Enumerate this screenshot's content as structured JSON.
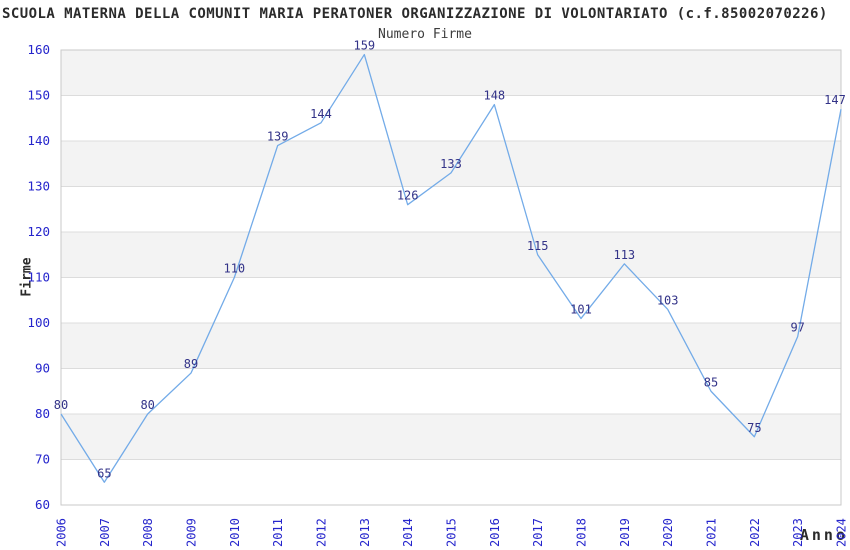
{
  "page": {
    "background": "#ffffff"
  },
  "chart_data": {
    "type": "line",
    "title": "SCUOLA MATERNA DELLA COMUNIT MARIA PERATONER ORGANIZZAZIONE DI VOLONTARIATO (c.f.85002070226)",
    "subtitle": "Numero Firme",
    "xlabel": "Anno",
    "ylabel": "Firme",
    "categories": [
      "2006",
      "2007",
      "2008",
      "2009",
      "2010",
      "2011",
      "2012",
      "2013",
      "2014",
      "2015",
      "2016",
      "2017",
      "2018",
      "2019",
      "2020",
      "2021",
      "2022",
      "2023",
      "2024"
    ],
    "series": [
      {
        "name": "Numero Firme",
        "values": [
          80,
          65,
          80,
          89,
          110,
          139,
          144,
          159,
          126,
          133,
          148,
          115,
          101,
          113,
          103,
          85,
          75,
          97,
          147
        ]
      }
    ],
    "ylim": [
      60,
      160
    ],
    "yticks": [
      60,
      70,
      80,
      90,
      100,
      110,
      120,
      130,
      140,
      150,
      160
    ],
    "grid": true,
    "legend_position": "none",
    "data_labels_shown": true,
    "colors": {
      "line": "#73abe8",
      "data_label": "#333388",
      "tick_label": "#2525cc",
      "band": "#f3f3f3",
      "gridline": "#dcdcdc",
      "plot_border": "#c9c9c9",
      "title": "#2b2b2b",
      "subtitle": "#3c3c3c"
    }
  }
}
